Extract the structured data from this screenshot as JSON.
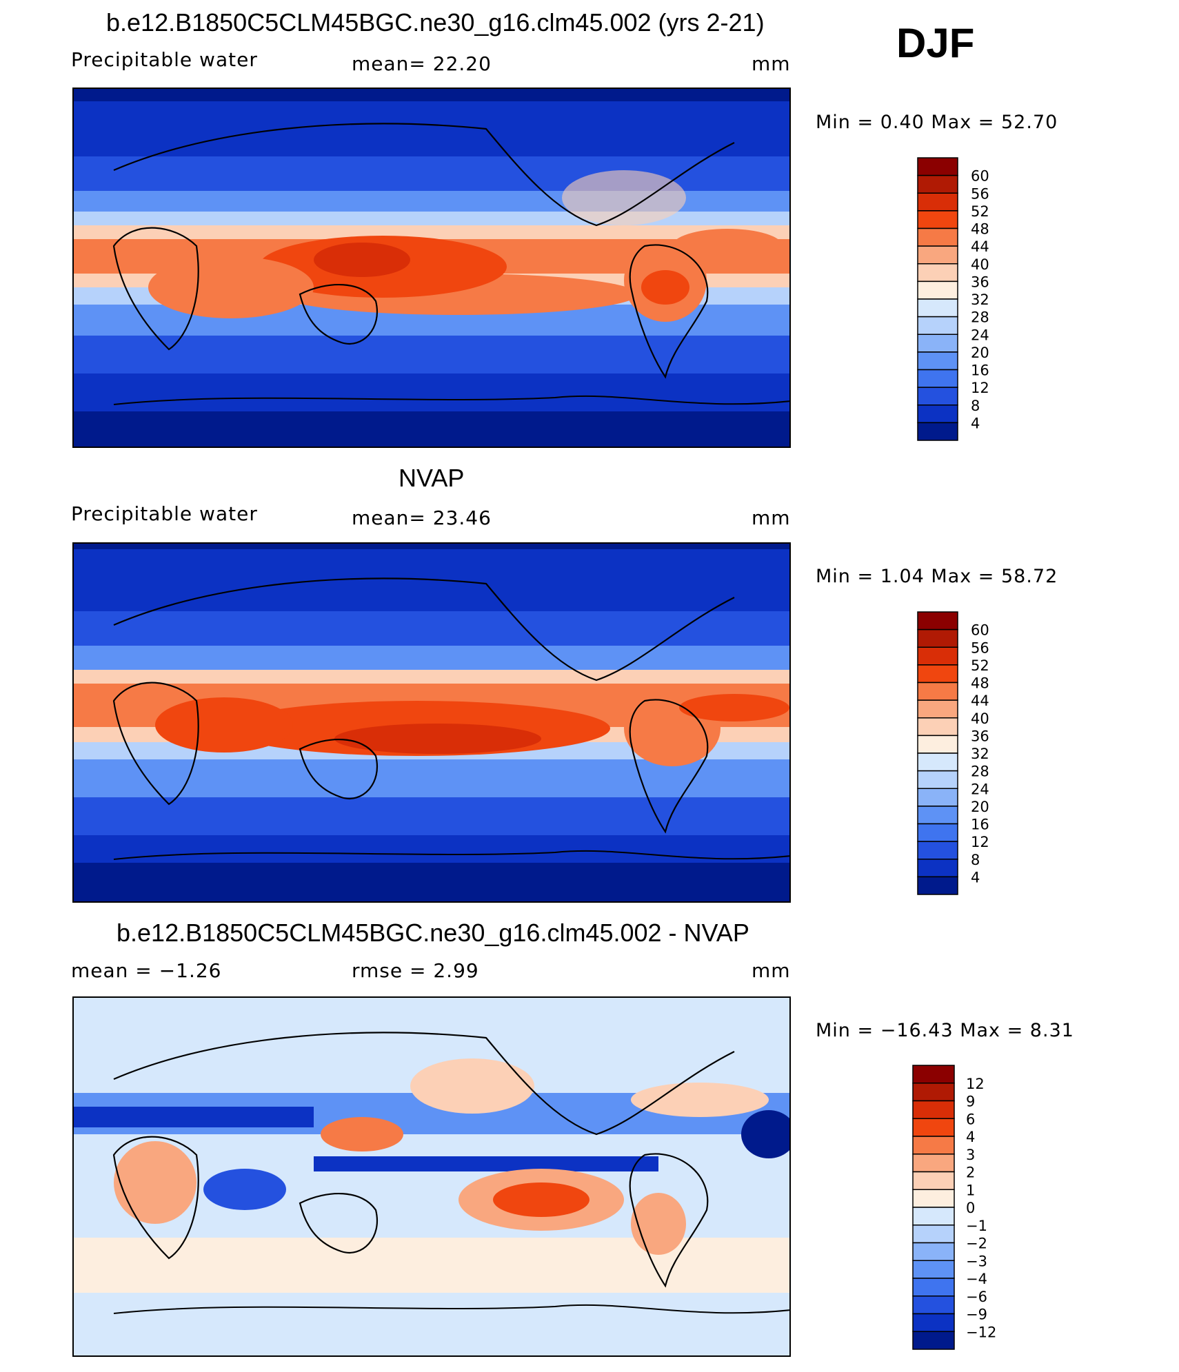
{
  "season": "DJF",
  "panels": [
    {
      "title": "b.e12.B1850C5CLM45BGC.ne30_g16.clm45.002 (yrs 2-21)",
      "left_label": "Precipitable  water",
      "center_label": "mean=   22.20",
      "units": "mm",
      "minmax": "Min  =     0.40  Max  =    52.70",
      "colorbar": {
        "labels": [
          "60",
          "56",
          "52",
          "48",
          "44",
          "40",
          "36",
          "32",
          "28",
          "24",
          "20",
          "16",
          "12",
          "8",
          "4"
        ],
        "colors": [
          "#8b0000",
          "#b01a04",
          "#d92e07",
          "#f0460f",
          "#f67a46",
          "#f9a77f",
          "#fcd0b6",
          "#fdeedf",
          "#d6e8fc",
          "#b6d2fb",
          "#8ab3f8",
          "#5e92f5",
          "#3f74ef",
          "#2451df",
          "#0c32c3",
          "#001a8c"
        ]
      }
    },
    {
      "title": "NVAP",
      "left_label": "Precipitable  water",
      "center_label": "mean=   23.46",
      "units": "mm",
      "minmax": "Min  =     1.04  Max  =    58.72",
      "colorbar": {
        "labels": [
          "60",
          "56",
          "52",
          "48",
          "44",
          "40",
          "36",
          "32",
          "28",
          "24",
          "20",
          "16",
          "12",
          "8",
          "4"
        ],
        "colors": [
          "#8b0000",
          "#b01a04",
          "#d92e07",
          "#f0460f",
          "#f67a46",
          "#f9a77f",
          "#fcd0b6",
          "#fdeedf",
          "#d6e8fc",
          "#b6d2fb",
          "#8ab3f8",
          "#5e92f5",
          "#3f74ef",
          "#2451df",
          "#0c32c3",
          "#001a8c"
        ]
      }
    },
    {
      "title": "b.e12.B1850C5CLM45BGC.ne30_g16.clm45.002 - NVAP",
      "left_label": "mean  =    −1.26",
      "center_label": "rmse  =     2.99",
      "units": "mm",
      "minmax": "Min  =  −16.43  Max  =     8.31",
      "colorbar": {
        "labels": [
          "12",
          "9",
          "6",
          "4",
          "3",
          "2",
          "1",
          "0",
          "−1",
          "−2",
          "−3",
          "−4",
          "−6",
          "−9",
          "−12"
        ],
        "colors": [
          "#8b0000",
          "#b01a04",
          "#d92e07",
          "#f0460f",
          "#f67a46",
          "#f9a77f",
          "#fcd0b6",
          "#fdeedf",
          "#d6e8fc",
          "#b6d2fb",
          "#8ab3f8",
          "#5e92f5",
          "#3f74ef",
          "#2451df",
          "#0c32c3",
          "#001a8c"
        ]
      }
    }
  ]
}
